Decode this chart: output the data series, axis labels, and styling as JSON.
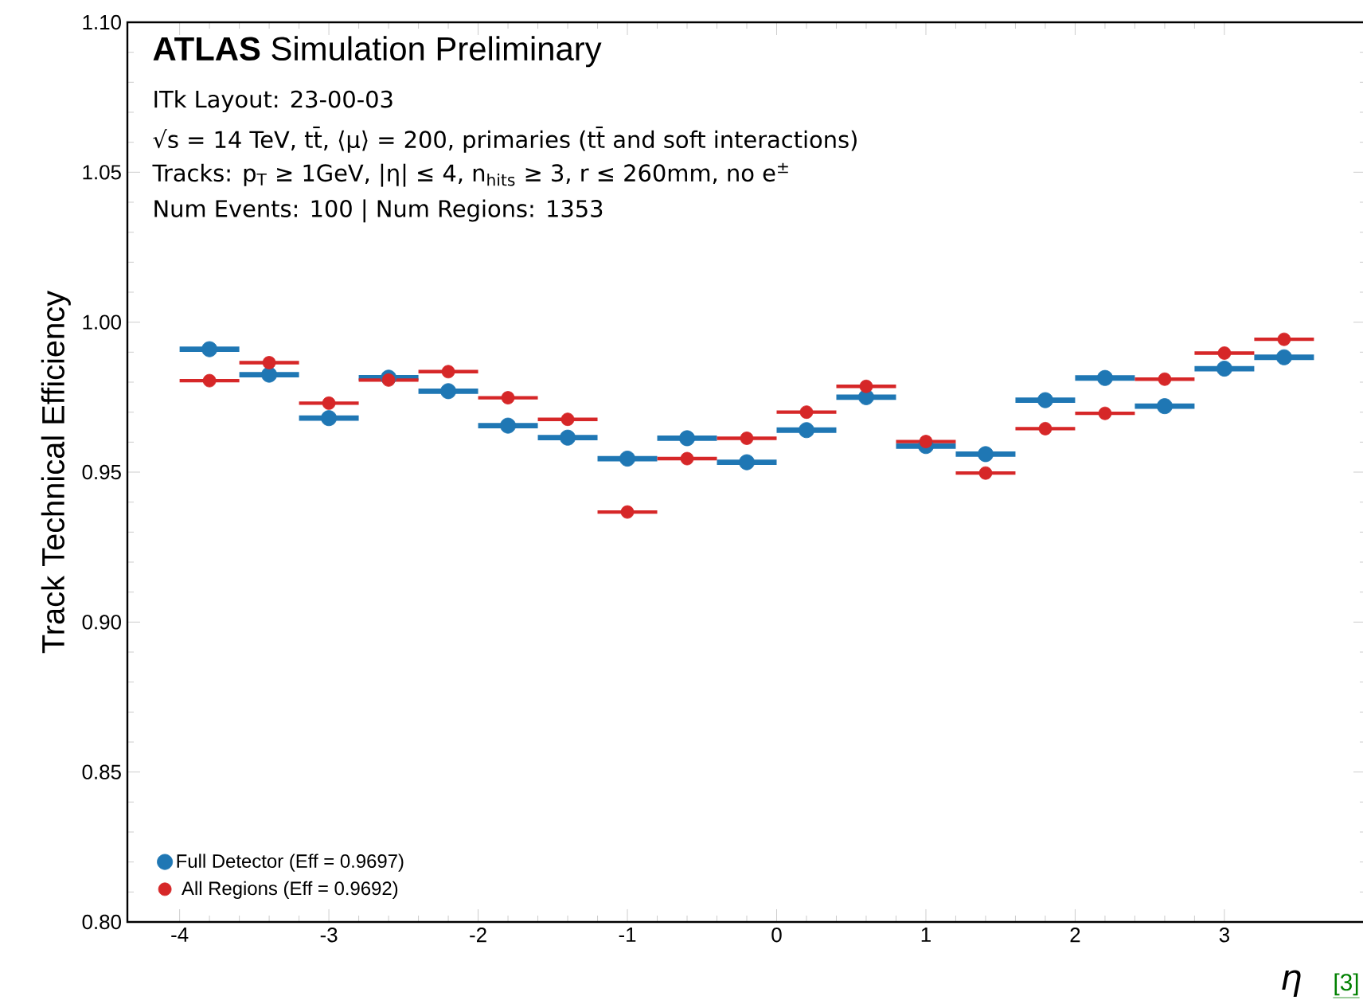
{
  "chart_data": {
    "type": "scatter",
    "title": "**ATLAS** Simulation Preliminary",
    "annotations": [
      "ITk Layout: 23-00-03",
      "√s = 14 TeV, tt̄, ⟨μ⟩ = 200, primaries (tt̄ and soft interactions)",
      "Tracks: p$_{T}$ ≥ 1GeV, |η| ≤ 4, n$_{hits}$ ≥ 3, r ≤ 260mm, no e$^{±}$",
      "Num Events: 100 | Num Regions: 1353",
      "[3]"
    ],
    "xlabel": "η",
    "ylabel": "Track Technical Efficiency",
    "x": [
      -3.8,
      -3.4,
      -3.0,
      -2.6,
      -2.2,
      -1.8,
      -1.4,
      -1.0,
      -0.6,
      -0.2,
      0.2,
      0.6,
      1.0,
      1.4,
      1.8,
      2.2,
      2.6,
      3.0,
      3.4
    ],
    "series": [
      {
        "name": "Full Detector (Eff = 0.9697)",
        "color": "#1f77b4",
        "values": [
          0.991,
          0.9825,
          0.968,
          0.9815,
          0.977,
          0.9655,
          0.9615,
          0.9545,
          0.9613,
          0.9533,
          0.964,
          0.975,
          0.9587,
          0.956,
          0.974,
          0.9814,
          0.972,
          0.9845,
          0.9883
        ],
        "xerrors": [
          0.2,
          0.2,
          0.2,
          0.2,
          0.2,
          0.2,
          0.2,
          0.2,
          0.2,
          0.2,
          0.2,
          0.2,
          0.2,
          0.2,
          0.2,
          0.2,
          0.2,
          0.2,
          0.2
        ]
      },
      {
        "name": "All Regions (Eff = 0.9692)",
        "color": "#d62728",
        "values": [
          0.9805,
          0.9865,
          0.973,
          0.9807,
          0.9835,
          0.9748,
          0.9676,
          0.9367,
          0.9545,
          0.9613,
          0.97,
          0.9786,
          0.9602,
          0.9497,
          0.9645,
          0.9696,
          0.981,
          0.9897,
          0.9943
        ],
        "xerrors": [
          0.2,
          0.2,
          0.2,
          0.2,
          0.2,
          0.2,
          0.2,
          0.2,
          0.2,
          0.2,
          0.2,
          0.2,
          0.2,
          0.2,
          0.2,
          0.2,
          0.2,
          0.2,
          0.2
        ]
      }
    ],
    "xlim": [
      -4.35,
      3.95
    ],
    "ylim": [
      0.8,
      1.1
    ],
    "xticks": [
      -4,
      -3,
      -2,
      -1,
      0,
      1,
      2,
      3
    ],
    "yticks": [
      {
        "value": 0.8,
        "label": "0.80"
      },
      {
        "value": 0.85,
        "label": "0.85"
      },
      {
        "value": 0.9,
        "label": "0.90"
      },
      {
        "value": 0.95,
        "label": "0.95"
      },
      {
        "value": 1.0,
        "label": "1.00"
      },
      {
        "value": 1.05,
        "label": "1.05"
      },
      {
        "value": 1.1,
        "label": "1.10"
      }
    ],
    "marker": "circle",
    "legend": "bottom left"
  }
}
